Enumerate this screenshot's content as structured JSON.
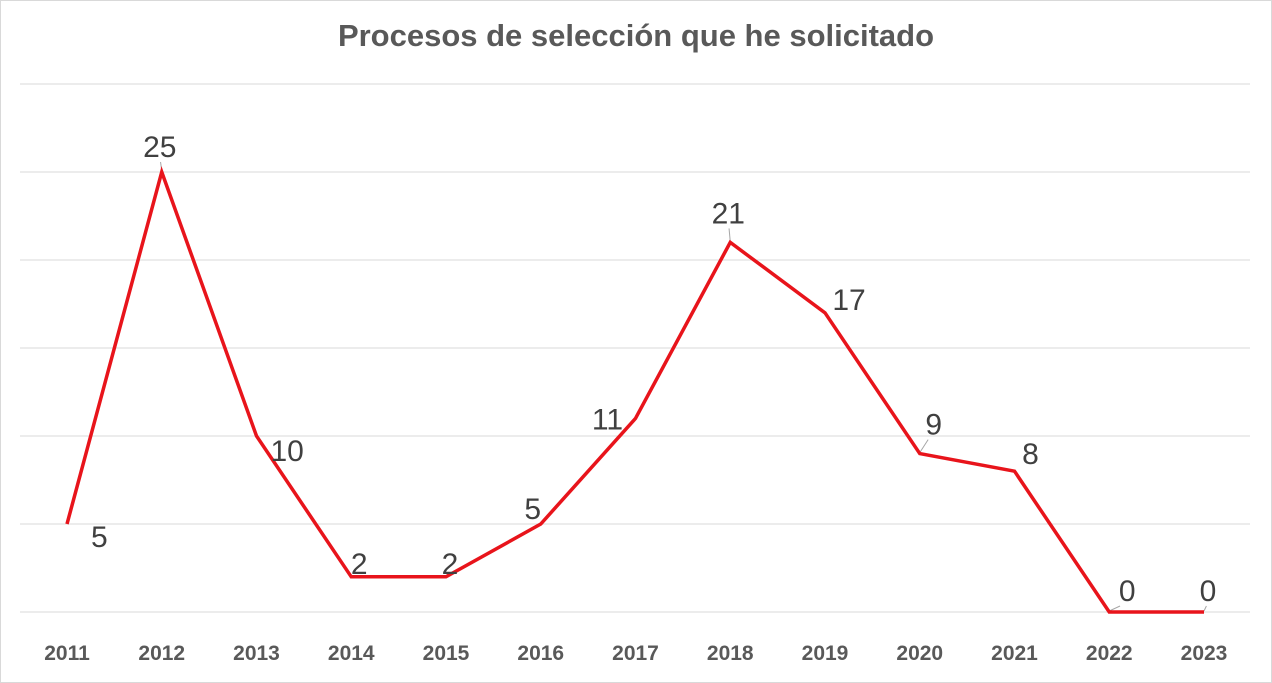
{
  "chart_data": {
    "type": "line",
    "title": "Procesos de selección que he solicitado",
    "xlabel": "",
    "ylabel": "",
    "categories": [
      "2011",
      "2012",
      "2013",
      "2014",
      "2015",
      "2016",
      "2017",
      "2018",
      "2019",
      "2020",
      "2021",
      "2022",
      "2023"
    ],
    "values": [
      5,
      25,
      10,
      2,
      2,
      5,
      11,
      21,
      17,
      9,
      8,
      0,
      0
    ],
    "ylim": [
      0,
      30
    ],
    "gridlines": true,
    "y_tick_labels_shown": false,
    "legend": "none",
    "colors": {
      "series": "#e8141b",
      "grid": "#d9d9d9",
      "text": "#595959",
      "labels": "#404040"
    }
  }
}
